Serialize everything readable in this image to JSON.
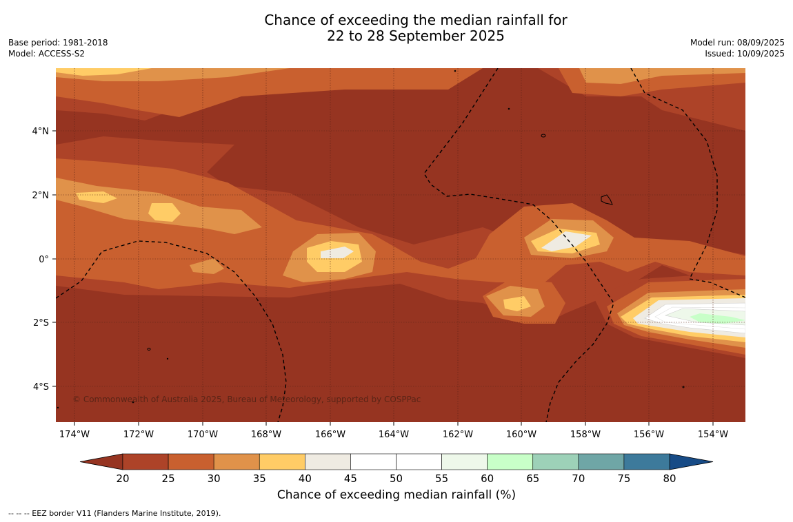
{
  "title": {
    "line1": "Chance of exceeding the median rainfall for",
    "line2": "22 to 28 September 2025"
  },
  "meta_left": {
    "base_period": "Base period: 1981-2018",
    "model": "Model: ACCESS-S2"
  },
  "meta_right": {
    "model_run": "Model run: 08/09/2025",
    "issued": "Issued: 10/09/2025"
  },
  "map": {
    "lon_range": [
      -174.6,
      -152.9
    ],
    "lat_range": [
      -5.2,
      5.8
    ],
    "x_ticks": [
      "174°W",
      "172°W",
      "170°W",
      "168°W",
      "166°W",
      "164°W",
      "162°W",
      "160°W",
      "158°W",
      "156°W",
      "154°W"
    ],
    "y_ticks": [
      "4°N",
      "2°N",
      "0°",
      "2°S",
      "4°S"
    ],
    "copyright": "© Commonwealth of Australia 2025, Bureau of Meteorology, supported by COSPPac"
  },
  "colorbar": {
    "ticks": [
      "20",
      "25",
      "30",
      "35",
      "40",
      "45",
      "50",
      "55",
      "60",
      "65",
      "70",
      "75",
      "80"
    ],
    "colors": [
      "#ad4328",
      "#c9602f",
      "#e0924a",
      "#ffcc66",
      "#efebe2",
      "#ffffff",
      "#ffffff",
      "#eef8ea",
      "#c8ffc8",
      "#9dd1b8",
      "#6fa6a6",
      "#3d7a9b"
    ],
    "under_color": "#963421",
    "over_color": "#174b86",
    "label": "Chance of exceeding median rainfall (%)"
  },
  "footnote": "--  --  -- EEZ border V11 (Flanders Marine Institute, 2019)."
}
